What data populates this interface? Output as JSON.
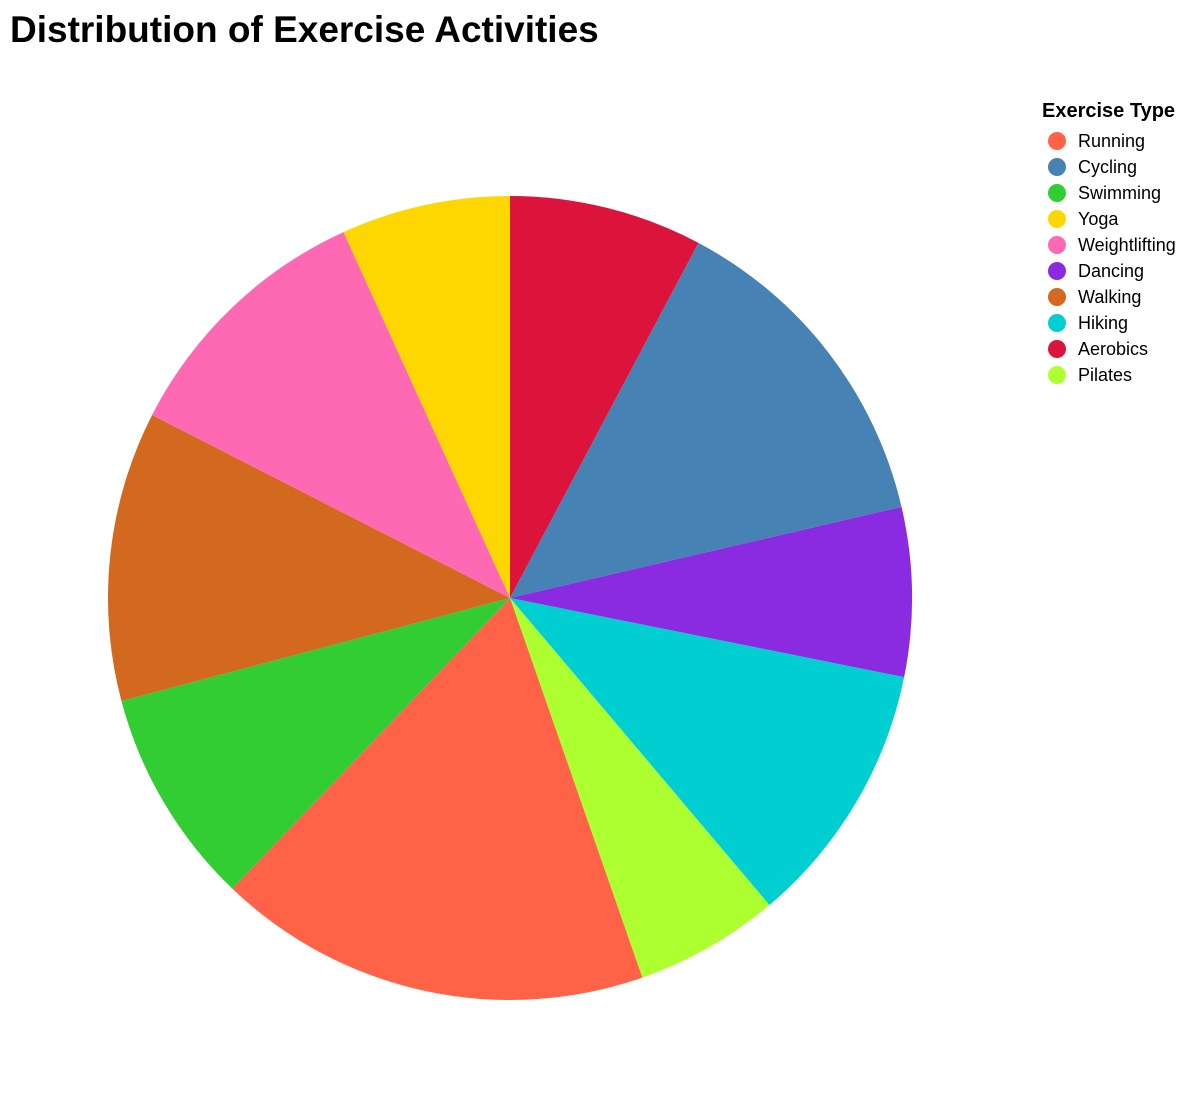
{
  "chart_data": {
    "type": "pie",
    "title": "Distribution of Exercise Activities",
    "legend_title": "Exercise Type",
    "legend_position": "top-right",
    "categories": [
      "Running",
      "Cycling",
      "Swimming",
      "Yoga",
      "Weightlifting",
      "Dancing",
      "Walking",
      "Hiking",
      "Aerobics",
      "Pilates"
    ],
    "colors": [
      "#FF6347",
      "#4682B4",
      "#32CD32",
      "#FFD700",
      "#FF69B4",
      "#8A2BE2",
      "#D2691E",
      "#00CED1",
      "#DC143C",
      "#ADFF2F"
    ],
    "slice_order": [
      "Aerobics",
      "Cycling",
      "Dancing",
      "Hiking",
      "Pilates",
      "Running",
      "Swimming",
      "Walking",
      "Weightlifting",
      "Yoga"
    ],
    "values": [
      18,
      14,
      9,
      7,
      11,
      7,
      12,
      11,
      8,
      6
    ]
  }
}
